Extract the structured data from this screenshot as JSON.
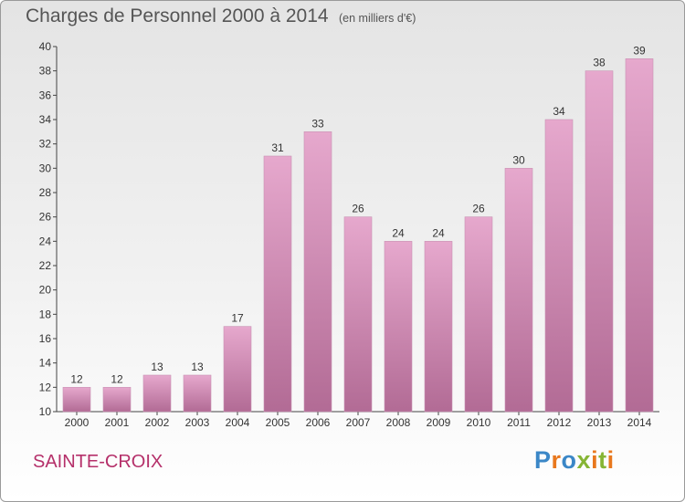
{
  "header": {
    "title": "Charges de Personnel 2000 à 2014",
    "subtitle": "(en milliers d'€)"
  },
  "footer": {
    "commune": "SAINTE-CROIX",
    "logo_text": "Proxiti"
  },
  "colors": {
    "bar_top": "#e6a8cd",
    "bar_bottom": "#b26b95",
    "commune": "#b5306a",
    "logo_letters": [
      "#3b87c7",
      "#e8781e",
      "#3b87c7",
      "#86b534",
      "#e8781e",
      "#86b534",
      "#e8781e"
    ]
  },
  "chart_data": {
    "type": "bar",
    "categories": [
      "2000",
      "2001",
      "2002",
      "2003",
      "2004",
      "2005",
      "2006",
      "2007",
      "2008",
      "2009",
      "2010",
      "2011",
      "2012",
      "2013",
      "2014"
    ],
    "values": [
      12,
      12,
      13,
      13,
      17,
      31,
      33,
      26,
      24,
      24,
      26,
      30,
      34,
      38,
      39
    ],
    "ylim": [
      10,
      40
    ],
    "yticks": [
      10,
      12,
      14,
      16,
      18,
      20,
      22,
      24,
      26,
      28,
      30,
      32,
      34,
      36,
      38,
      40
    ],
    "grid": false,
    "data_labels": true
  }
}
